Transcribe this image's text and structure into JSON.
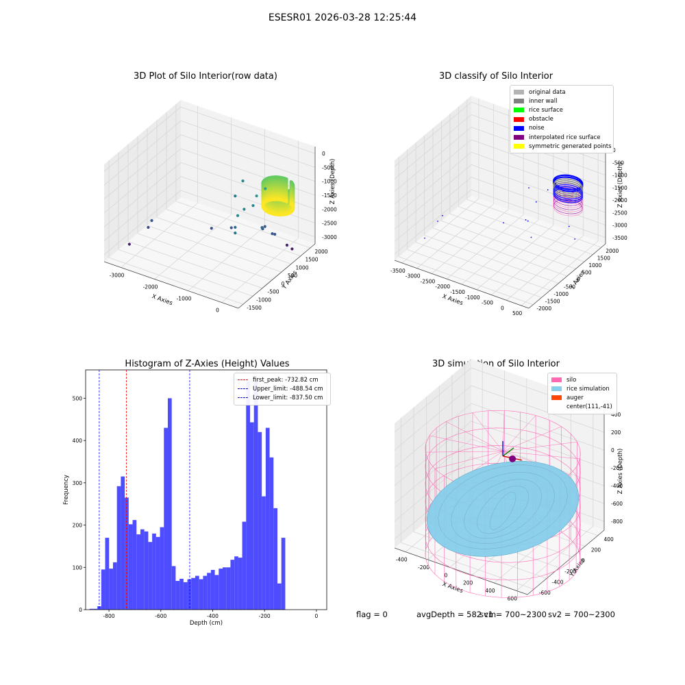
{
  "suptitle": "ESESR01 2026-03-28 12:25:44",
  "footer": {
    "flag": "flag = 0",
    "avg_depth": "avgDepth = 582 cm",
    "sv1": "sv1 = 700~2300",
    "sv2": "sv2 = 700~2300"
  },
  "colors": {
    "histogram": "#4d4dff",
    "first_peak": "#ff0000",
    "limits": "#0000ff",
    "silo": "#ff69b4",
    "rice_simulation": "#87ceeb",
    "auger": "#ff4500",
    "original_data": "#b3b3b3",
    "inner_wall": "#808080",
    "rice_surface": "#00ff00",
    "obstacle": "#ff0000",
    "noise": "#0000ff",
    "interpolated_rice_surface": "#800080",
    "symmetric_generated_points": "#ffff00"
  },
  "chart_data": [
    {
      "type": "scatter",
      "projection": "3d",
      "title": "3D Plot of Silo Interior(row data)",
      "xlabel": "X Axies",
      "ylabel": "Y Axies",
      "zlabel": "Z Axies (Depth)",
      "x_ticks": [
        "-3000",
        "-2000",
        "-1000",
        "0"
      ],
      "y_ticks": [
        "-1500",
        "-1000",
        "-500",
        "0",
        "500",
        "1000",
        "1500",
        "2000"
      ],
      "z_ticks": [
        "0",
        "-500",
        "-1000",
        "-1500",
        "-2000",
        "-2500",
        "-3000"
      ],
      "xlim": [
        -3600,
        600
      ],
      "ylim": [
        -1700,
        2300
      ],
      "zlim": [
        -3300,
        100
      ],
      "colormap": "viridis",
      "series": [
        {
          "x": [
            -3350,
            -3000,
            -2950,
            -1500,
            -1300,
            -1000,
            -1300,
            -700,
            -600,
            -500,
            -450,
            -300,
            -250,
            -200,
            -150,
            -100,
            -400,
            -500,
            200,
            300,
            100,
            150
          ],
          "y": [
            -800,
            -400,
            -300,
            400,
            1300,
            600,
            1700,
            300,
            600,
            900,
            1000,
            1200,
            1100,
            900,
            800,
            700,
            -200,
            100,
            1500,
            1600,
            900,
            950
          ],
          "z": [
            -3100,
            -2600,
            -2400,
            -2500,
            -1800,
            -2400,
            -1500,
            -2100,
            -1600,
            -1600,
            -1300,
            -1100,
            -2350,
            -2300,
            -2200,
            -2100,
            -1900,
            -1500,
            -3050,
            -3200,
            -2350,
            -2380
          ]
        }
      ],
      "ring": {
        "center_x": 100,
        "center_y": 1200,
        "radius": 420,
        "z_top": -800,
        "z_bottom": -1600
      }
    },
    {
      "type": "scatter",
      "projection": "3d",
      "title": "3D classify of Silo Interior",
      "xlabel": "X Axies",
      "ylabel": "Y Axies",
      "zlabel": "Z Axies (Depth)",
      "x_ticks": [
        "-3500",
        "-3000",
        "-2500",
        "-2000",
        "-1500",
        "-1000",
        "-500",
        "0",
        "500"
      ],
      "y_ticks": [
        "-2000",
        "-1500",
        "-1000",
        "-500",
        "0",
        "500",
        "1000",
        "1500",
        "2000"
      ],
      "z_ticks": [
        "0",
        "-500",
        "-1000",
        "-1500",
        "-2000",
        "-2500",
        "-3000",
        "-3500"
      ],
      "xlim": [
        -3700,
        700
      ],
      "ylim": [
        -2100,
        2300
      ],
      "zlim": [
        -3700,
        100
      ],
      "legend": [
        {
          "label": "original data",
          "color": "#b3b3b3"
        },
        {
          "label": "inner wall",
          "color": "#808080"
        },
        {
          "label": "rice surface",
          "color": "#00ff00"
        },
        {
          "label": "obstacle",
          "color": "#ff0000"
        },
        {
          "label": "noise",
          "color": "#0000ff"
        },
        {
          "label": "interpolated rice surface",
          "color": "#800080"
        },
        {
          "label": "symmetric generated points",
          "color": "#ffff00"
        }
      ],
      "noise_points": {
        "x": [
          -3400,
          -3200,
          -3100,
          -1500,
          -1300,
          -1000,
          -700,
          -600,
          -450,
          -300,
          -250,
          150,
          250
        ],
        "y": [
          -900,
          -500,
          -400,
          300,
          1400,
          700,
          300,
          600,
          1000,
          1200,
          -300,
          1500,
          1000
        ],
        "z": [
          -3400,
          -2900,
          -2700,
          -2700,
          -1900,
          -2600,
          -2300,
          -1700,
          -1400,
          -1200,
          -2400,
          -3300,
          -2500
        ]
      },
      "ring": {
        "center_x": 100,
        "center_y": 1200,
        "radius": 420,
        "z_top": -1000,
        "z_bottom": -2000
      }
    },
    {
      "type": "bar",
      "title": "Histogram of Z-Axies (Height) Values",
      "xlabel": "Depth (cm)",
      "ylabel": "Frequency",
      "xlim": [
        -890,
        40
      ],
      "ylim": [
        0,
        567
      ],
      "x_ticks": [
        -800,
        -600,
        -400,
        -200,
        0
      ],
      "y_ticks": [
        0,
        100,
        200,
        300,
        400,
        500
      ],
      "bin_start": -875,
      "bin_width": 15.1,
      "values": [
        2,
        2,
        8,
        95,
        170,
        97,
        112,
        292,
        315,
        265,
        202,
        212,
        178,
        190,
        185,
        160,
        180,
        172,
        195,
        430,
        500,
        103,
        68,
        73,
        65,
        72,
        75,
        80,
        72,
        80,
        87,
        94,
        82,
        97,
        100,
        100,
        118,
        126,
        123,
        208,
        540,
        443,
        540,
        420,
        268,
        430,
        360,
        240,
        62,
        170
      ],
      "lines": [
        {
          "x": -732.82,
          "color": "#ff0000",
          "label": "first_peak: -732.82 cm"
        },
        {
          "x": -488.54,
          "color": "#0000ff",
          "label": "Upper_limit: -488.54 cm"
        },
        {
          "x": -837.5,
          "color": "#0000ff",
          "label": "Lower_limit: -837.50 cm"
        }
      ]
    },
    {
      "type": "surface",
      "projection": "3d",
      "title": "3D simulation of Silo Interior",
      "xlabel": "X Axies",
      "ylabel": "Y Axies",
      "zlabel": "Z Axies (Depth)",
      "x_ticks": [
        "-400",
        "-200",
        "0",
        "200",
        "400",
        "600"
      ],
      "y_ticks": [
        "-600",
        "-400",
        "-200",
        "0",
        "200",
        "400"
      ],
      "z_ticks": [
        "400",
        "200",
        "0",
        "-200",
        "-400",
        "-600",
        "-800"
      ],
      "xlim": [
        -500,
        700
      ],
      "ylim": [
        -650,
        500
      ],
      "zlim": [
        -900,
        400
      ],
      "legend": [
        {
          "label": "silo",
          "color": "#ff69b4"
        },
        {
          "label": "rice simulation",
          "color": "#87ceeb"
        },
        {
          "label": "auger",
          "color": "#ff4500"
        },
        {
          "label": "center(111,-41)",
          "color": ""
        }
      ],
      "silo": {
        "center_x": 111,
        "center_y": -41,
        "radius": 600,
        "z_top": 0,
        "z_bottom": -1100
      },
      "rice_depth_range": [
        -760,
        -440
      ]
    }
  ]
}
